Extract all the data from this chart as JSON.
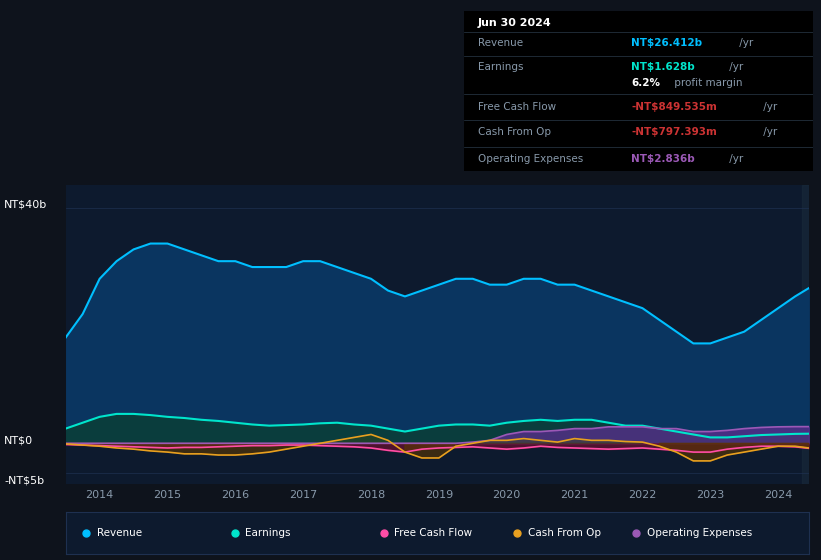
{
  "bg_color": "#0e131c",
  "plot_bg_color": "#0d1a2e",
  "dark_bg_color": "#0a0f18",
  "grid_color": "#1e3050",
  "text_color": "#8899aa",
  "years_x": [
    2013.5,
    2013.75,
    2014.0,
    2014.25,
    2014.5,
    2014.75,
    2015.0,
    2015.25,
    2015.5,
    2015.75,
    2016.0,
    2016.25,
    2016.5,
    2016.75,
    2017.0,
    2017.25,
    2017.5,
    2017.75,
    2018.0,
    2018.25,
    2018.5,
    2018.75,
    2019.0,
    2019.25,
    2019.5,
    2019.75,
    2020.0,
    2020.25,
    2020.5,
    2020.75,
    2021.0,
    2021.25,
    2021.5,
    2021.75,
    2022.0,
    2022.25,
    2022.5,
    2022.75,
    2023.0,
    2023.25,
    2023.5,
    2023.75,
    2024.0,
    2024.25,
    2024.45
  ],
  "revenue": [
    18,
    22,
    28,
    31,
    33,
    34,
    34,
    33,
    32,
    31,
    31,
    30,
    30,
    30,
    31,
    31,
    30,
    29,
    28,
    26,
    25,
    26,
    27,
    28,
    28,
    27,
    27,
    28,
    28,
    27,
    27,
    26,
    25,
    24,
    23,
    21,
    19,
    17,
    17,
    18,
    19,
    21,
    23,
    25,
    26.4
  ],
  "earnings": [
    2.5,
    3.5,
    4.5,
    5.0,
    5.0,
    4.8,
    4.5,
    4.3,
    4.0,
    3.8,
    3.5,
    3.2,
    3.0,
    3.1,
    3.2,
    3.4,
    3.5,
    3.2,
    3.0,
    2.5,
    2.0,
    2.5,
    3.0,
    3.2,
    3.2,
    3.0,
    3.5,
    3.8,
    4.0,
    3.8,
    4.0,
    4.0,
    3.5,
    3.0,
    3.0,
    2.5,
    2.0,
    1.5,
    1.0,
    1.0,
    1.2,
    1.4,
    1.5,
    1.6,
    1.628
  ],
  "free_cash_flow": [
    -0.2,
    -0.3,
    -0.4,
    -0.5,
    -0.6,
    -0.7,
    -0.8,
    -0.7,
    -0.7,
    -0.6,
    -0.5,
    -0.4,
    -0.4,
    -0.3,
    -0.3,
    -0.4,
    -0.5,
    -0.6,
    -0.8,
    -1.2,
    -1.5,
    -1.0,
    -0.8,
    -0.7,
    -0.6,
    -0.8,
    -1.0,
    -0.8,
    -0.5,
    -0.7,
    -0.8,
    -0.9,
    -1.0,
    -0.9,
    -0.8,
    -1.0,
    -1.2,
    -1.5,
    -1.5,
    -1.0,
    -0.7,
    -0.5,
    -0.5,
    -0.6,
    -0.85
  ],
  "cash_from_op": [
    -0.1,
    -0.3,
    -0.5,
    -0.8,
    -1.0,
    -1.3,
    -1.5,
    -1.8,
    -1.8,
    -2.0,
    -2.0,
    -1.8,
    -1.5,
    -1.0,
    -0.5,
    0.0,
    0.5,
    1.0,
    1.5,
    0.5,
    -1.5,
    -2.5,
    -2.5,
    -0.5,
    0.0,
    0.5,
    0.5,
    0.8,
    0.5,
    0.2,
    0.8,
    0.5,
    0.5,
    0.3,
    0.2,
    -0.5,
    -1.5,
    -3.0,
    -3.0,
    -2.0,
    -1.5,
    -1.0,
    -0.5,
    -0.5,
    -0.797
  ],
  "operating_expenses": [
    0.0,
    0.0,
    0.0,
    0.0,
    0.0,
    0.0,
    0.0,
    0.0,
    0.0,
    0.0,
    0.0,
    0.0,
    0.0,
    0.0,
    0.0,
    0.0,
    0.0,
    0.0,
    0.0,
    0.0,
    0.0,
    0.0,
    0.0,
    0.0,
    0.2,
    0.5,
    1.5,
    2.0,
    2.0,
    2.2,
    2.5,
    2.5,
    2.8,
    2.8,
    2.8,
    2.5,
    2.5,
    2.0,
    2.0,
    2.2,
    2.5,
    2.7,
    2.8,
    2.836,
    2.836
  ],
  "revenue_color": "#00bfff",
  "earnings_color": "#00e5cc",
  "free_cash_flow_color": "#ff4da6",
  "cash_from_op_color": "#e8a020",
  "operating_expenses_color": "#9b59b6",
  "revenue_fill": "#0a3560",
  "earnings_fill": "#0a3d3d",
  "ylim_min": -7,
  "ylim_max": 44,
  "xticks": [
    2014,
    2015,
    2016,
    2017,
    2018,
    2019,
    2020,
    2021,
    2022,
    2023,
    2024
  ],
  "info_box": {
    "date": "Jun 30 2024",
    "revenue_label": "Revenue",
    "revenue_value": "NT$26.412b",
    "revenue_color": "#00bfff",
    "earnings_label": "Earnings",
    "earnings_value": "NT$1.628b",
    "earnings_color": "#00e5cc",
    "margin_text": "6.2%",
    "margin_label": " profit margin",
    "fcf_label": "Free Cash Flow",
    "fcf_value": "-NT$849.535m",
    "fcf_color": "#cc3333",
    "cfo_label": "Cash From Op",
    "cfo_value": "-NT$797.393m",
    "cfo_color": "#cc3333",
    "opex_label": "Operating Expenses",
    "opex_value": "NT$2.836b",
    "opex_color": "#9b59b6"
  },
  "legend": [
    {
      "label": "Revenue",
      "color": "#00bfff"
    },
    {
      "label": "Earnings",
      "color": "#00e5cc"
    },
    {
      "label": "Free Cash Flow",
      "color": "#ff4da6"
    },
    {
      "label": "Cash From Op",
      "color": "#e8a020"
    },
    {
      "label": "Operating Expenses",
      "color": "#9b59b6"
    }
  ]
}
